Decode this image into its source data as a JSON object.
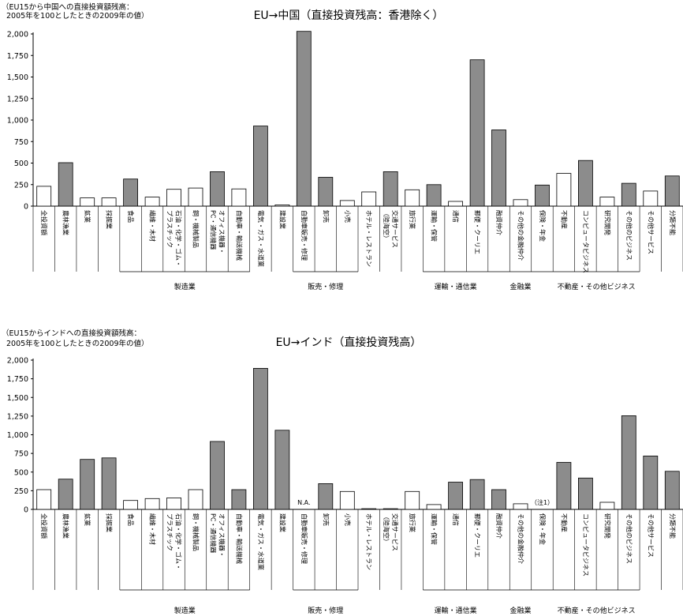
{
  "chart_data": [
    {
      "type": "bar",
      "title": "EU→中国（直接投資残高：香港除く）",
      "ylabel": "（EU15から中国への直接投資額残高：\n2005年を100としたときの2009年の値）",
      "ylim": [
        0,
        2000
      ],
      "yticks": [
        "0",
        "250",
        "500",
        "750",
        "1,000",
        "1,250",
        "1,500",
        "1,750",
        "2,000"
      ],
      "grid": false,
      "categories": [
        "全投資額",
        "農林漁業",
        "鉱業",
        "採掘業",
        "食品",
        "繊維・木材",
        "石油・化学・ゴム・\nプラスチック",
        "鋼・機械製品",
        "オフィス機器・\nPC・通信機器",
        "自動車・輸送機械",
        "電気・ガス・水道業",
        "建設業",
        "自動車販売・修理",
        "卸売",
        "小売",
        "ホテル・レストラン",
        "交通サービス\n（陸海空）",
        "旅行業",
        "運輸・保管",
        "通信",
        "郵便・クーリエ",
        "融資仲介",
        "その他の金融仲介",
        "保険・年金",
        "不動産",
        "コンピュータビジネス",
        "研究開発",
        "その他のビジネス",
        "その他サービス",
        "分類不能"
      ],
      "values": [
        230,
        505,
        95,
        95,
        315,
        105,
        195,
        210,
        400,
        200,
        930,
        15,
        2030,
        335,
        65,
        165,
        400,
        190,
        250,
        55,
        1700,
        885,
        75,
        245,
        380,
        530,
        105,
        265,
        175,
        350
      ],
      "highlight": [
        false,
        true,
        false,
        false,
        true,
        false,
        false,
        false,
        true,
        false,
        true,
        false,
        true,
        true,
        false,
        false,
        true,
        false,
        true,
        false,
        true,
        true,
        false,
        true,
        false,
        true,
        false,
        true,
        false,
        true
      ],
      "groups": [
        {
          "label": "製造業",
          "start": 4,
          "end": 9
        },
        {
          "label": "販売・修理",
          "start": 12,
          "end": 14
        },
        {
          "label": "運輸・通信業",
          "start": 18,
          "end": 20
        },
        {
          "label": "金融業",
          "start": 21,
          "end": 23
        },
        {
          "label": "不動産・その他ビジネス",
          "start": 24,
          "end": 27
        }
      ],
      "notes": []
    },
    {
      "type": "bar",
      "title": "EU→インド（直接投資残高）",
      "ylabel": "（EU15からインドへの直接投資額残高：\n2005年を100としたときの2009年の値）",
      "ylim": [
        0,
        2000
      ],
      "yticks": [
        "0",
        "250",
        "500",
        "750",
        "1,000",
        "1,250",
        "1,500",
        "1,750",
        "2,000"
      ],
      "grid": false,
      "categories": [
        "全投資額",
        "農林漁業",
        "鉱業",
        "採掘業",
        "食品",
        "繊維・木材",
        "石油・化学・ゴム・\nプラスチック",
        "鋼・機械製品",
        "オフィス機器・\nPC・通信機器",
        "自動車・輸送機械",
        "電気・ガス・水道業",
        "建設業",
        "自動車販売・修理",
        "卸売",
        "小売",
        "ホテル・レストラン",
        "交通サービス\n（陸海空）",
        "旅行業",
        "運輸・保管",
        "通信",
        "郵便・クーリエ",
        "融資仲介",
        "その他の金融仲介",
        "保険・年金",
        "不動産",
        "コンピュータビジネス",
        "研究開発",
        "その他のビジネス",
        "その他サービス",
        "分類不能"
      ],
      "values": [
        265,
        405,
        670,
        690,
        120,
        145,
        155,
        265,
        910,
        265,
        1890,
        1060,
        null,
        345,
        240,
        10,
        10,
        240,
        65,
        365,
        400,
        265,
        75,
        null,
        630,
        420,
        95,
        1255,
        715,
        510
      ],
      "highlight": [
        false,
        true,
        true,
        true,
        false,
        false,
        false,
        false,
        true,
        true,
        true,
        true,
        false,
        true,
        false,
        false,
        false,
        false,
        false,
        true,
        true,
        true,
        false,
        false,
        true,
        true,
        false,
        true,
        true,
        true
      ],
      "groups": [
        {
          "label": "製造業",
          "start": 4,
          "end": 9
        },
        {
          "label": "販売・修理",
          "start": 12,
          "end": 14
        },
        {
          "label": "運輸・通信業",
          "start": 18,
          "end": 20
        },
        {
          "label": "金融業",
          "start": 21,
          "end": 23
        },
        {
          "label": "不動産・その他ビジネス",
          "start": 24,
          "end": 27
        }
      ],
      "notes": [
        {
          "index": 12,
          "text": "N.A."
        },
        {
          "index": 23,
          "text": "（注1）"
        }
      ]
    }
  ],
  "colors": {
    "highlight_bar": "#8c8c8c",
    "plain_bar": "#ffffff",
    "outline": "#000000"
  }
}
